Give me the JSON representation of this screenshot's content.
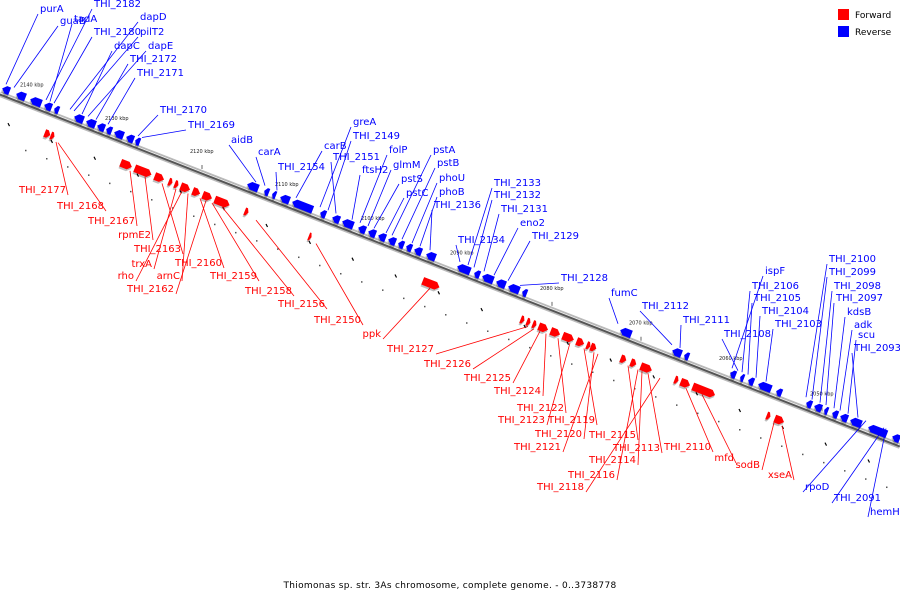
{
  "caption": "Thiomonas sp. str. 3As chromosome, complete genome. - 0..3738778",
  "legend": [
    {
      "label": "Forward",
      "color": "#ff0000"
    },
    {
      "label": "Reverse",
      "color": "#0000ff"
    }
  ],
  "colors": {
    "forward": "#ff0000",
    "reverse": "#0000ff",
    "backbone": "#555555"
  },
  "ticks": [
    "2140 kbp",
    "2130 kbp",
    "2120 kbp",
    "2110 kbp",
    "2100 kbp",
    "2090 kbp",
    "2080 kbp",
    "2070 kbp",
    "2060 kbp",
    "2050 kbp"
  ],
  "reverse_labels": [
    "purA",
    "guaB",
    "THI_2182",
    "tadA",
    "THI_2180",
    "dapD",
    "pilT2",
    "dapC",
    "dapE",
    "THI_2172",
    "THI_2171",
    "THI_2170",
    "THI_2169",
    "aidB",
    "carA",
    "THI_2154",
    "carB",
    "greA",
    "THI_2149",
    "THI_2151",
    "ftsH2",
    "folP",
    "glmM",
    "pstS",
    "pstC",
    "pstA",
    "pstB",
    "phoU",
    "phoB",
    "THI_2136",
    "THI_2133",
    "THI_2132",
    "THI_2131",
    "eno2",
    "THI_2134",
    "THI_2129",
    "THI_2128",
    "fumC",
    "THI_2112",
    "THI_2111",
    "ispF",
    "THI_2106",
    "THI_2105",
    "THI_2104",
    "THI_2103",
    "THI_2108",
    "THI_2100",
    "THI_2099",
    "THI_2098",
    "THI_2097",
    "kdsB",
    "adk",
    "scu",
    "THI_2093",
    "rpoD",
    "THI_2091",
    "hemH"
  ],
  "forward_labels": [
    "THI_2177",
    "THI_2168",
    "THI_2167",
    "rpmE2",
    "THI_2163",
    "trxA",
    "rho",
    "arnC",
    "THI_2160",
    "THI_2162",
    "THI_2159",
    "THI_2158",
    "THI_2156",
    "THI_2150",
    "ppk",
    "THI_2127",
    "THI_2126",
    "THI_2125",
    "THI_2124",
    "THI_2122",
    "THI_2123",
    "THI_2119",
    "THI_2120",
    "THI_2121",
    "THI_2115",
    "THI_2116",
    "THI_2114",
    "THI_2113",
    "THI_2118",
    "THI_2110",
    "mfd",
    "sodB",
    "xseA"
  ]
}
